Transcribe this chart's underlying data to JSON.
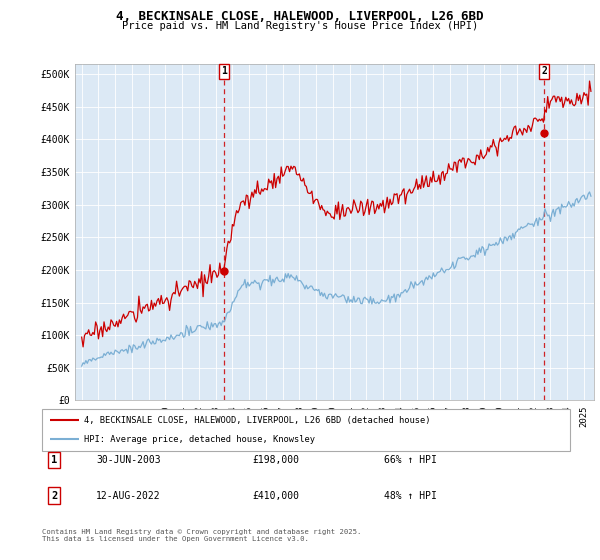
{
  "title_line1": "4, BECKINSALE CLOSE, HALEWOOD, LIVERPOOL, L26 6BD",
  "title_line2": "Price paid vs. HM Land Registry's House Price Index (HPI)",
  "ylabel_ticks": [
    "£0",
    "£50K",
    "£100K",
    "£150K",
    "£200K",
    "£250K",
    "£300K",
    "£350K",
    "£400K",
    "£450K",
    "£500K"
  ],
  "ytick_values": [
    0,
    50000,
    100000,
    150000,
    200000,
    250000,
    300000,
    350000,
    400000,
    450000,
    500000
  ],
  "ylim": [
    0,
    515000
  ],
  "xlim_start": 1994.6,
  "xlim_end": 2025.6,
  "marker1_x": 2003.5,
  "marker1_y": 198000,
  "marker2_x": 2022.62,
  "marker2_y": 410000,
  "marker1_label": "1",
  "marker2_label": "2",
  "legend_line1": "4, BECKINSALE CLOSE, HALEWOOD, LIVERPOOL, L26 6BD (detached house)",
  "legend_line2": "HPI: Average price, detached house, Knowsley",
  "annotation1_num": "1",
  "annotation1_date": "30-JUN-2003",
  "annotation1_price": "£198,000",
  "annotation1_hpi": "66% ↑ HPI",
  "annotation2_num": "2",
  "annotation2_date": "12-AUG-2022",
  "annotation2_price": "£410,000",
  "annotation2_hpi": "48% ↑ HPI",
  "footer": "Contains HM Land Registry data © Crown copyright and database right 2025.\nThis data is licensed under the Open Government Licence v3.0.",
  "line_color_red": "#cc0000",
  "line_color_blue": "#7bafd4",
  "background_color": "#ffffff",
  "plot_bg_color": "#dce9f5",
  "grid_color": "#ffffff"
}
